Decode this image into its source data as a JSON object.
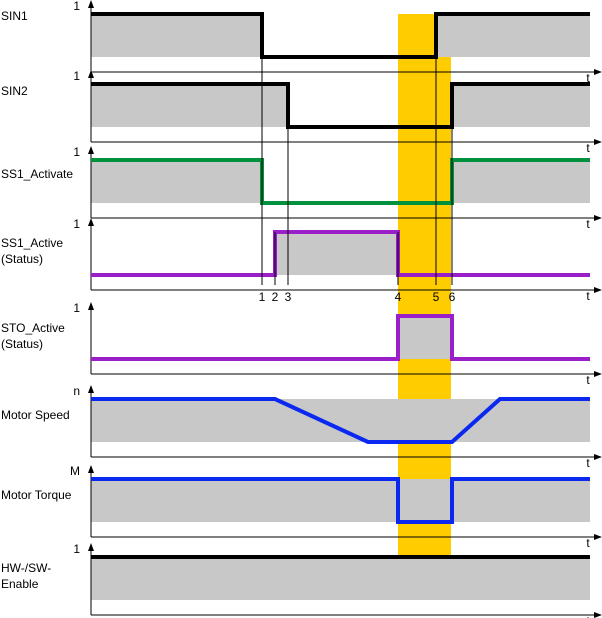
{
  "time_axis_label": "t",
  "highlight_color": "#FFCC00",
  "fill_color": "#C8C8C8",
  "event_markers": [
    "1",
    "2",
    "3",
    "4",
    "5",
    "6"
  ],
  "signals": [
    {
      "id": "sin1",
      "label_lines": [
        "SIN1"
      ],
      "y_tick": "1",
      "color": "#000000"
    },
    {
      "id": "sin2",
      "label_lines": [
        "SIN2"
      ],
      "y_tick": "1",
      "color": "#000000"
    },
    {
      "id": "ss1-activate",
      "label_lines": [
        "SS1_Activate"
      ],
      "y_tick": "1",
      "color": "#00913F"
    },
    {
      "id": "ss1-active",
      "label_lines": [
        "SS1_Active",
        "(Status)"
      ],
      "y_tick": "1",
      "color": "#9B1FC8"
    },
    {
      "id": "sto-active",
      "label_lines": [
        "STO_Active",
        "(Status)"
      ],
      "y_tick": "1",
      "color": "#9B1FC8"
    },
    {
      "id": "motor-speed",
      "label_lines": [
        "Motor Speed"
      ],
      "y_tick": "n",
      "color": "#0A28F0"
    },
    {
      "id": "motor-torque",
      "label_lines": [
        "Motor Torque"
      ],
      "y_tick": "M",
      "color": "#0A28F0"
    },
    {
      "id": "hw-sw-enable",
      "label_lines": [
        "HW-/SW-",
        "Enable"
      ],
      "y_tick": "1",
      "color": "#000000"
    }
  ]
}
